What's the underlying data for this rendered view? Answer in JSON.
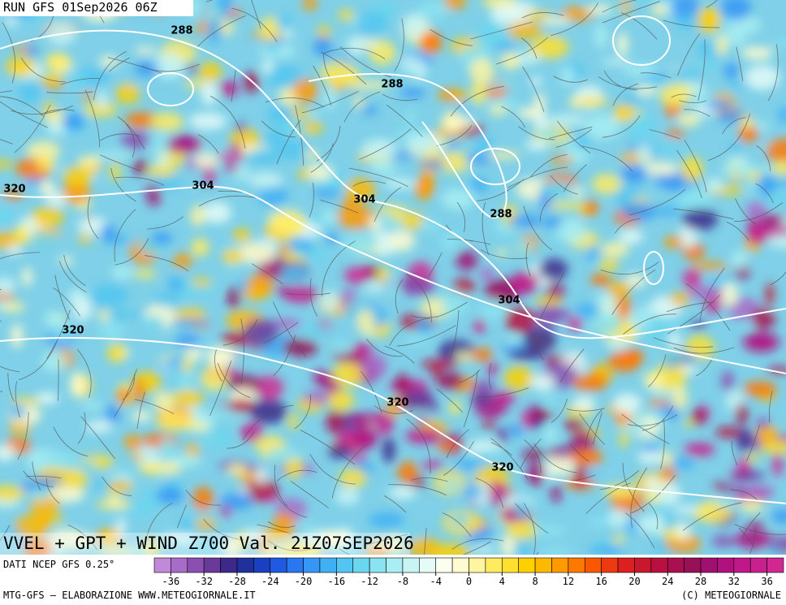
{
  "header": {
    "run": "RUN GFS 01Sep2026 06Z"
  },
  "map": {
    "contour_labels": [
      "288",
      "288",
      "304",
      "304",
      "288",
      "320",
      "320",
      "304",
      "320",
      "320"
    ]
  },
  "title": "VVEL + GPT + WIND Z700 Val. 21Z07SEP2026",
  "legend": {
    "source": "DATI NCEP GFS 0.25°",
    "ticks": [
      -36,
      -32,
      -28,
      -24,
      -20,
      -16,
      -12,
      -8,
      -4,
      0,
      4,
      8,
      12,
      16,
      20,
      24,
      28,
      32,
      36
    ]
  },
  "footer": {
    "left": "MTG-GFS — ELABORAZIONE WWW.METEOGIORNALE.IT",
    "right": "(C) METEOGIORNALE"
  }
}
